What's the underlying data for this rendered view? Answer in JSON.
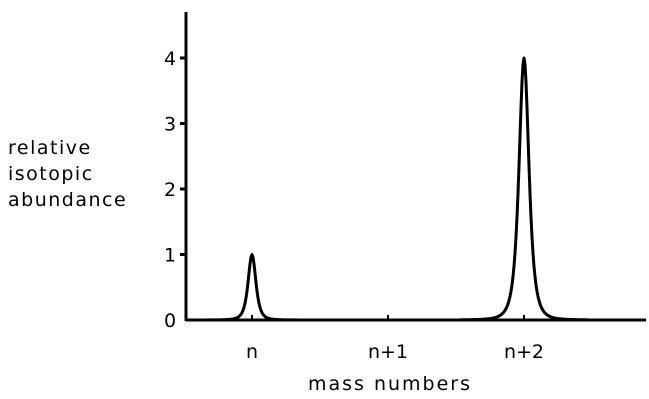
{
  "chart_data": {
    "type": "line",
    "ylabel": [
      "relative",
      "isotopic",
      "abundance"
    ],
    "xlabel": "mass numbers",
    "categories": [
      "n",
      "n+1",
      "n+2"
    ],
    "values": [
      1,
      0,
      4
    ],
    "y_ticks": [
      "0",
      "1",
      "2",
      "3",
      "4"
    ],
    "ylim": [
      0,
      4.6
    ],
    "grid": false,
    "legend": "none",
    "line_color": "#000000"
  }
}
